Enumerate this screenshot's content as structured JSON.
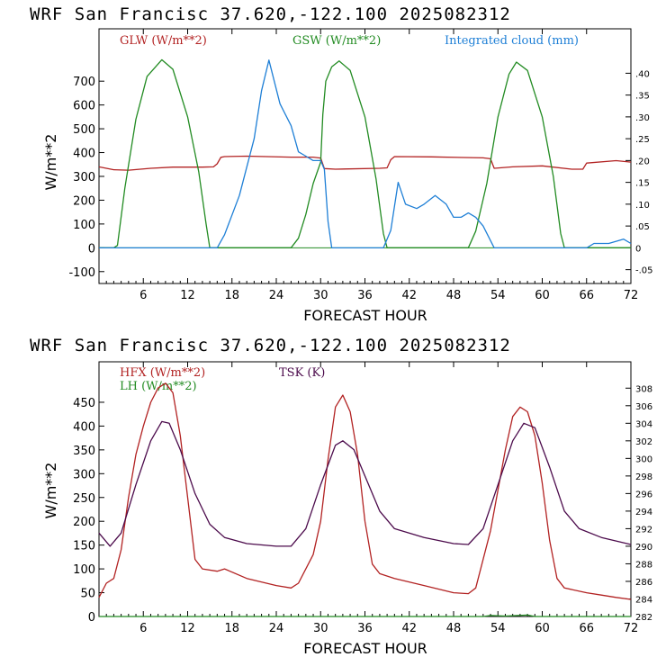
{
  "colors": {
    "glw": "#b22222",
    "gsw": "#228b22",
    "cloud": "#1e7fd6",
    "hfx": "#b22222",
    "lh": "#228b22",
    "tsk": "#4b0a4b",
    "axis": "#000000"
  },
  "chart_data": [
    {
      "type": "line",
      "header": "WRF  San Francisc  37.620,-122.100  2025082312",
      "xlabel": "FORECAST HOUR",
      "ylabel": "W/m**2",
      "xlim": [
        0,
        72
      ],
      "xticks": [
        6,
        12,
        18,
        24,
        30,
        36,
        42,
        48,
        54,
        60,
        66,
        72
      ],
      "ylim": [
        -150,
        920
      ],
      "yticks": [
        -100,
        0,
        100,
        200,
        300,
        400,
        500,
        600,
        700
      ],
      "y2lim": [
        -0.0817,
        0.5018
      ],
      "y2ticks": [
        "-.05",
        "0",
        ".05",
        ".10",
        ".15",
        ".20",
        ".25",
        ".30",
        ".35",
        ".40"
      ],
      "legend_position": "top",
      "series": [
        {
          "name": "GLW (W/m**2)",
          "color": "glw",
          "axis": "left",
          "points": [
            [
              0,
              340
            ],
            [
              2,
              328
            ],
            [
              4,
              326
            ],
            [
              7,
              334
            ],
            [
              10,
              339
            ],
            [
              14,
              339
            ],
            [
              15.5,
              340
            ],
            [
              16,
              353
            ],
            [
              16.5,
              380
            ],
            [
              17,
              383
            ],
            [
              20,
              385
            ],
            [
              26,
              381
            ],
            [
              29,
              381
            ],
            [
              30,
              377
            ],
            [
              30.5,
              333
            ],
            [
              32,
              330
            ],
            [
              38,
              334
            ],
            [
              39,
              336
            ],
            [
              39.5,
              370
            ],
            [
              40,
              383
            ],
            [
              45,
              382
            ],
            [
              52,
              378
            ],
            [
              53,
              374
            ],
            [
              53.5,
              334
            ],
            [
              56,
              340
            ],
            [
              60,
              344
            ],
            [
              64,
              330
            ],
            [
              65.5,
              330
            ],
            [
              66,
              356
            ],
            [
              70,
              366
            ],
            [
              72,
              360
            ]
          ]
        },
        {
          "name": "GSW (W/m**2)",
          "color": "gsw",
          "axis": "left",
          "points": [
            [
              0,
              0
            ],
            [
              2,
              0
            ],
            [
              2.5,
              10
            ],
            [
              3.5,
              250
            ],
            [
              5,
              540
            ],
            [
              6.5,
              720
            ],
            [
              8.5,
              790
            ],
            [
              10,
              750
            ],
            [
              12,
              550
            ],
            [
              13.5,
              320
            ],
            [
              14.5,
              100
            ],
            [
              15,
              0
            ],
            [
              26,
              0
            ],
            [
              27,
              40
            ],
            [
              28,
              140
            ],
            [
              29,
              270
            ],
            [
              30,
              360
            ],
            [
              30.3,
              560
            ],
            [
              30.7,
              700
            ],
            [
              31.5,
              760
            ],
            [
              32.5,
              785
            ],
            [
              34,
              745
            ],
            [
              36,
              550
            ],
            [
              37.5,
              290
            ],
            [
              38.5,
              60
            ],
            [
              39,
              0
            ],
            [
              50,
              0
            ],
            [
              51,
              70
            ],
            [
              52.5,
              270
            ],
            [
              54,
              550
            ],
            [
              55.5,
              730
            ],
            [
              56.5,
              780
            ],
            [
              58,
              745
            ],
            [
              60,
              550
            ],
            [
              61.5,
              300
            ],
            [
              62.5,
              60
            ],
            [
              63,
              0
            ],
            [
              72,
              0
            ]
          ]
        },
        {
          "name": "Integrated cloud (mm)",
          "color": "cloud",
          "axis": "right",
          "points": [
            [
              0,
              0
            ],
            [
              16,
              0
            ],
            [
              17,
              0.03
            ],
            [
              19,
              0.12
            ],
            [
              21,
              0.25
            ],
            [
              22,
              0.36
            ],
            [
              23,
              0.43
            ],
            [
              24.5,
              0.33
            ],
            [
              26,
              0.28
            ],
            [
              27,
              0.22
            ],
            [
              28,
              0.21
            ],
            [
              29,
              0.2
            ],
            [
              30,
              0.2
            ],
            [
              30.5,
              0.18
            ],
            [
              31,
              0.06
            ],
            [
              31.5,
              0
            ],
            [
              38.5,
              0
            ],
            [
              39.5,
              0.04
            ],
            [
              40.5,
              0.15
            ],
            [
              41.5,
              0.1
            ],
            [
              43,
              0.09
            ],
            [
              44,
              0.1
            ],
            [
              45.5,
              0.12
            ],
            [
              47,
              0.1
            ],
            [
              48,
              0.07
            ],
            [
              49,
              0.07
            ],
            [
              50,
              0.08
            ],
            [
              51,
              0.07
            ],
            [
              52,
              0.05
            ],
            [
              53.5,
              0
            ],
            [
              66,
              0
            ],
            [
              67,
              0.01
            ],
            [
              69,
              0.01
            ],
            [
              71,
              0.02
            ],
            [
              72,
              0.01
            ]
          ]
        }
      ]
    },
    {
      "type": "line",
      "header": "WRF  San Francisc  37.620,-122.100  2025082312",
      "xlabel": "FORECAST HOUR",
      "ylabel": "W/m**2",
      "xlim": [
        0,
        72
      ],
      "xticks": [
        6,
        12,
        18,
        24,
        30,
        36,
        42,
        48,
        54,
        60,
        66,
        72
      ],
      "ylim": [
        0,
        535
      ],
      "yticks": [
        0,
        50,
        100,
        150,
        200,
        250,
        300,
        350,
        400,
        450
      ],
      "y2lim": [
        282,
        311
      ],
      "y2ticks": [
        282,
        284,
        286,
        288,
        290,
        292,
        294,
        296,
        298,
        300,
        302,
        304,
        306,
        308
      ],
      "legend_position": "top-left",
      "series": [
        {
          "name": "HFX (W/m**2)",
          "color": "hfx",
          "axis": "left",
          "points": [
            [
              0,
              40
            ],
            [
              1,
              70
            ],
            [
              2,
              80
            ],
            [
              3,
              140
            ],
            [
              4,
              250
            ],
            [
              5,
              340
            ],
            [
              6,
              400
            ],
            [
              7,
              450
            ],
            [
              8,
              480
            ],
            [
              9,
              490
            ],
            [
              10,
              470
            ],
            [
              11,
              380
            ],
            [
              12,
              250
            ],
            [
              13,
              120
            ],
            [
              14,
              100
            ],
            [
              16,
              95
            ],
            [
              17,
              100
            ],
            [
              20,
              80
            ],
            [
              24,
              65
            ],
            [
              26,
              60
            ],
            [
              27,
              70
            ],
            [
              29,
              130
            ],
            [
              30,
              200
            ],
            [
              31,
              330
            ],
            [
              32,
              440
            ],
            [
              33,
              465
            ],
            [
              34,
              430
            ],
            [
              35,
              340
            ],
            [
              36,
              200
            ],
            [
              37,
              110
            ],
            [
              38,
              90
            ],
            [
              40,
              80
            ],
            [
              44,
              65
            ],
            [
              48,
              50
            ],
            [
              50,
              48
            ],
            [
              51,
              60
            ],
            [
              53,
              180
            ],
            [
              55,
              350
            ],
            [
              56,
              420
            ],
            [
              57,
              440
            ],
            [
              58,
              430
            ],
            [
              59,
              380
            ],
            [
              60,
              280
            ],
            [
              61,
              160
            ],
            [
              62,
              80
            ],
            [
              63,
              60
            ],
            [
              66,
              50
            ],
            [
              68,
              45
            ],
            [
              70,
              40
            ],
            [
              72,
              36
            ]
          ]
        },
        {
          "name": "LH  (W/m**2)",
          "color": "lh",
          "axis": "left",
          "points": [
            [
              0,
              0
            ],
            [
              52,
              0
            ],
            [
              53,
              2
            ],
            [
              55,
              1
            ],
            [
              58,
              3
            ],
            [
              59,
              0
            ],
            [
              72,
              0
            ]
          ]
        },
        {
          "name": "TSK (K)",
          "color": "tsk",
          "axis": "right",
          "points": [
            [
              0,
              291.5
            ],
            [
              1.5,
              290
            ],
            [
              3,
              291.5
            ],
            [
              5,
              297
            ],
            [
              7,
              302
            ],
            [
              8.5,
              304.2
            ],
            [
              9.5,
              304
            ],
            [
              11,
              301
            ],
            [
              13,
              296
            ],
            [
              15,
              292.5
            ],
            [
              17,
              291
            ],
            [
              20,
              290.3
            ],
            [
              24,
              290
            ],
            [
              26,
              290
            ],
            [
              28,
              292
            ],
            [
              30,
              297
            ],
            [
              32,
              301.5
            ],
            [
              33,
              302
            ],
            [
              34.5,
              301
            ],
            [
              36,
              298
            ],
            [
              38,
              294
            ],
            [
              40,
              292
            ],
            [
              44,
              291
            ],
            [
              48,
              290.3
            ],
            [
              50,
              290.2
            ],
            [
              52,
              292
            ],
            [
              54,
              297
            ],
            [
              56,
              302
            ],
            [
              57.5,
              304
            ],
            [
              59,
              303.5
            ],
            [
              61,
              299
            ],
            [
              63,
              294
            ],
            [
              65,
              292
            ],
            [
              68,
              291
            ],
            [
              72,
              290.2
            ]
          ]
        }
      ]
    }
  ]
}
